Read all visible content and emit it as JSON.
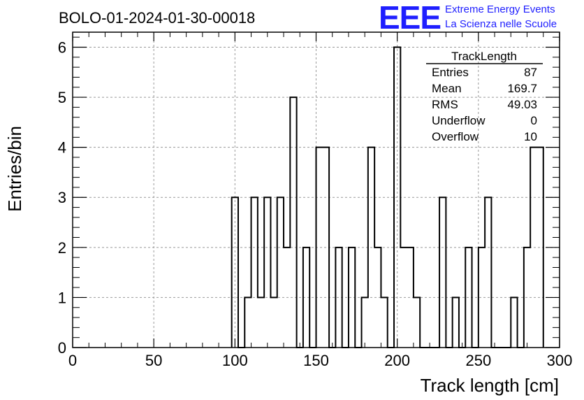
{
  "chart_data": {
    "type": "bar",
    "title": "BOLO-01-2024-01-30-00018",
    "xlabel": "Track length [cm]",
    "ylabel": "Entries/bin",
    "xlim": [
      0,
      300
    ],
    "ylim": [
      0,
      6.3
    ],
    "grid": true,
    "bin_width": 4.0,
    "x_ticks": [
      "0",
      "50",
      "100",
      "150",
      "200",
      "250",
      "300"
    ],
    "y_ticks": [
      "0",
      "1",
      "2",
      "3",
      "4",
      "5",
      "6"
    ],
    "bins": [
      {
        "x": 98,
        "y": 3
      },
      {
        "x": 102,
        "y": 0
      },
      {
        "x": 106,
        "y": 1
      },
      {
        "x": 110,
        "y": 3
      },
      {
        "x": 114,
        "y": 1
      },
      {
        "x": 118,
        "y": 3
      },
      {
        "x": 122,
        "y": 1
      },
      {
        "x": 126,
        "y": 3
      },
      {
        "x": 130,
        "y": 2
      },
      {
        "x": 134,
        "y": 5
      },
      {
        "x": 138,
        "y": 0
      },
      {
        "x": 142,
        "y": 2
      },
      {
        "x": 146,
        "y": 0
      },
      {
        "x": 150,
        "y": 4
      },
      {
        "x": 154,
        "y": 4
      },
      {
        "x": 158,
        "y": 0
      },
      {
        "x": 162,
        "y": 2
      },
      {
        "x": 166,
        "y": 0
      },
      {
        "x": 170,
        "y": 2
      },
      {
        "x": 174,
        "y": 0
      },
      {
        "x": 178,
        "y": 1
      },
      {
        "x": 182,
        "y": 4
      },
      {
        "x": 186,
        "y": 2
      },
      {
        "x": 190,
        "y": 1
      },
      {
        "x": 194,
        "y": 0
      },
      {
        "x": 198,
        "y": 6
      },
      {
        "x": 202,
        "y": 2
      },
      {
        "x": 206,
        "y": 2
      },
      {
        "x": 210,
        "y": 1
      },
      {
        "x": 214,
        "y": 0
      },
      {
        "x": 218,
        "y": 0
      },
      {
        "x": 222,
        "y": 0
      },
      {
        "x": 226,
        "y": 3
      },
      {
        "x": 230,
        "y": 0
      },
      {
        "x": 234,
        "y": 1
      },
      {
        "x": 238,
        "y": 0
      },
      {
        "x": 242,
        "y": 2
      },
      {
        "x": 246,
        "y": 0
      },
      {
        "x": 250,
        "y": 2
      },
      {
        "x": 254,
        "y": 3
      },
      {
        "x": 258,
        "y": 0
      },
      {
        "x": 262,
        "y": 0
      },
      {
        "x": 266,
        "y": 0
      },
      {
        "x": 270,
        "y": 1
      },
      {
        "x": 274,
        "y": 0
      },
      {
        "x": 278,
        "y": 2
      },
      {
        "x": 282,
        "y": 4
      },
      {
        "x": 286,
        "y": 4
      }
    ],
    "stats_box": {
      "name": "TrackLength",
      "rows": [
        {
          "label": "Entries",
          "value": "87"
        },
        {
          "label": "Mean",
          "value": "169.7"
        },
        {
          "label": "RMS",
          "value": "49.03"
        },
        {
          "label": "Underflow",
          "value": "0"
        },
        {
          "label": "Overflow",
          "value": "10"
        }
      ]
    }
  },
  "logo": {
    "mark": "EEE",
    "line1": "Extreme Energy Events",
    "line2": "La Scienza nelle Scuole"
  }
}
